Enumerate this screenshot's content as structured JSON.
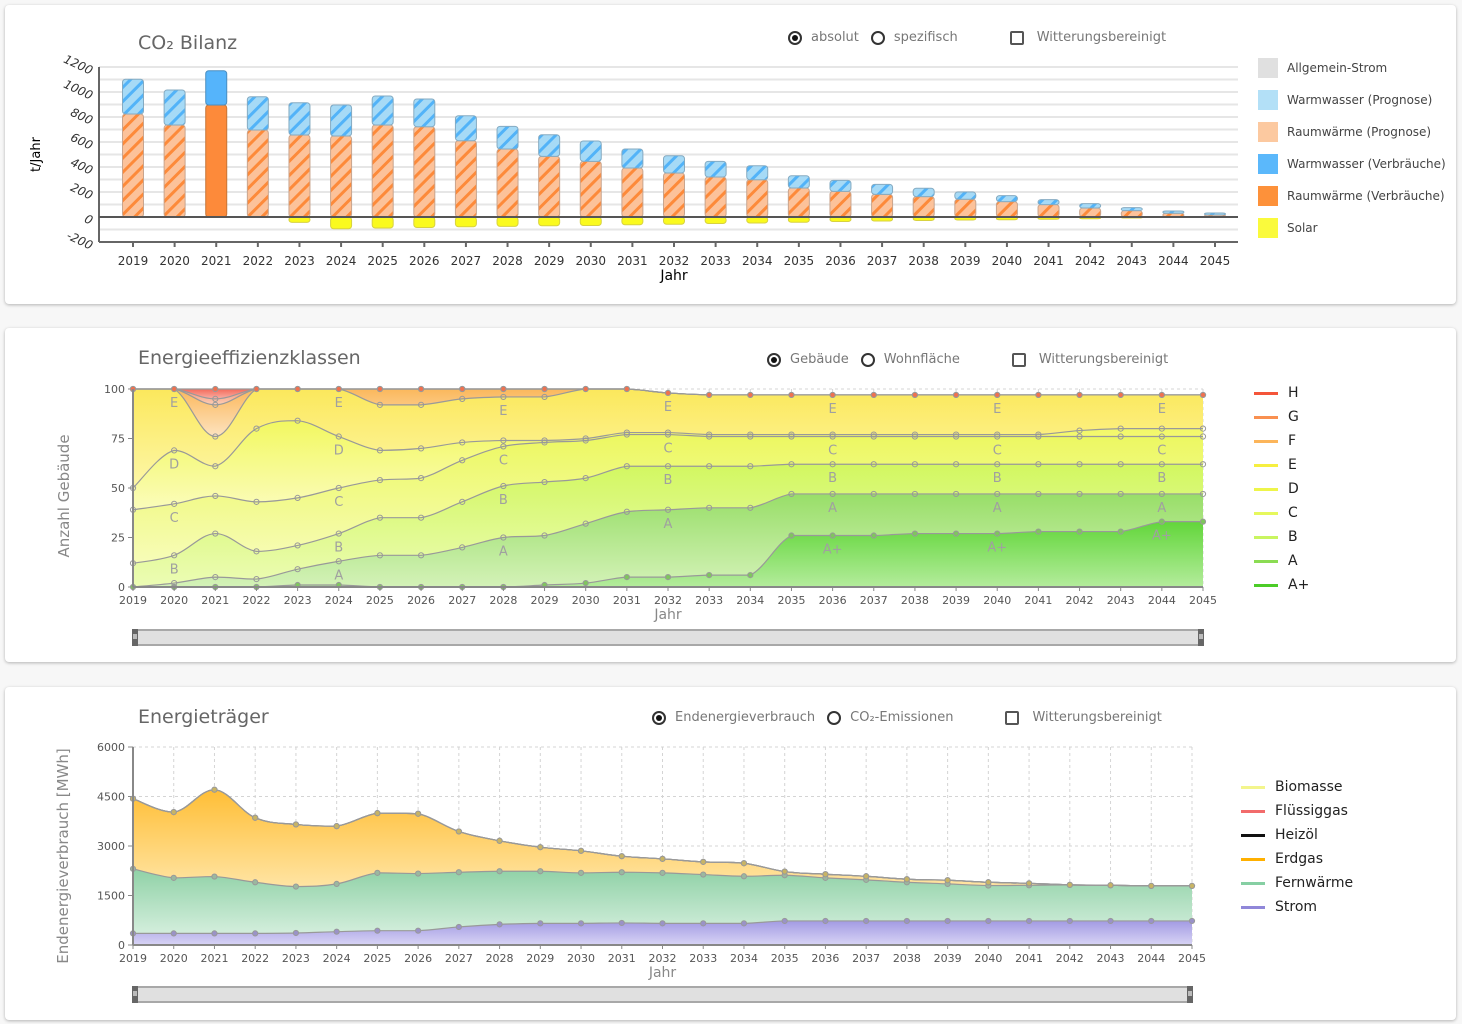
{
  "years": [
    "2019",
    "2020",
    "2021",
    "2022",
    "2023",
    "2024",
    "2025",
    "2026",
    "2027",
    "2028",
    "2029",
    "2030",
    "2031",
    "2032",
    "2033",
    "2034",
    "2035",
    "2036",
    "2037",
    "2038",
    "2039",
    "2040",
    "2041",
    "2042",
    "2043",
    "2044",
    "2045"
  ],
  "co2": {
    "title": "CO₂ Bilanz",
    "options": {
      "absolut": "absolut",
      "spezifisch": "spezifisch",
      "witterung": "Witterungsbereinigt"
    },
    "selected": "absolut",
    "witterung_checked": false,
    "legend": [
      {
        "label": "Allgemein-Strom",
        "color": "#e0e0e0"
      },
      {
        "label": "Warmwasser (Prognose)",
        "color": "#b3e0f7"
      },
      {
        "label": "Raumwärme (Prognose)",
        "color": "#fcc9a0"
      },
      {
        "label": "Warmwasser (Verbräuche)",
        "color": "#5bb8fb"
      },
      {
        "label": "Raumwärme (Verbräuche)",
        "color": "#fd913a"
      },
      {
        "label": "Solar",
        "color": "#fafa3c"
      }
    ]
  },
  "effizienz": {
    "title": "Energieeffizienzklassen",
    "options": {
      "gebaeude": "Gebäude",
      "wohnflaeche": "Wohnfläche",
      "witterung": "Witterungsbereinigt"
    },
    "selected": "gebaeude",
    "witterung_checked": false,
    "legend": [
      {
        "label": "H",
        "color": "#f4553a"
      },
      {
        "label": "G",
        "color": "#f99050"
      },
      {
        "label": "F",
        "color": "#fcb55a"
      },
      {
        "label": "E",
        "color": "#f6ef40"
      },
      {
        "label": "D",
        "color": "#eef54a"
      },
      {
        "label": "C",
        "color": "#e6f85c"
      },
      {
        "label": "B",
        "color": "#c9f560"
      },
      {
        "label": "A",
        "color": "#8bdc53"
      },
      {
        "label": "A+",
        "color": "#4ccc27"
      }
    ]
  },
  "traeger": {
    "title": "Energieträger",
    "options": {
      "endenergie": "Endenergieverbrauch",
      "co2": "CO₂-Emissionen",
      "witterung": "Witterungsbereinigt"
    },
    "selected": "endenergie",
    "witterung_checked": false,
    "legend": [
      {
        "label": "Biomasse",
        "color": "#f3f58c"
      },
      {
        "label": "Flüssiggas",
        "color": "#f26b6b"
      },
      {
        "label": "Heizöl",
        "color": "#111111"
      },
      {
        "label": "Erdgas",
        "color": "#ffb000"
      },
      {
        "label": "Fernwärme",
        "color": "#86cfa3"
      },
      {
        "label": "Strom",
        "color": "#9087d9"
      }
    ]
  },
  "chart_data": [
    {
      "type": "bar",
      "stacked": true,
      "title": "CO₂ Bilanz",
      "xlabel": "Jahr",
      "ylabel": "t/Jahr",
      "ylim": [
        -200,
        1200
      ],
      "yticks": [
        -200,
        0,
        200,
        400,
        600,
        800,
        1000,
        1200
      ],
      "grid": true,
      "legend_position": "right",
      "categories": [
        "2019",
        "2020",
        "2021",
        "2022",
        "2023",
        "2024",
        "2025",
        "2026",
        "2027",
        "2028",
        "2029",
        "2030",
        "2031",
        "2032",
        "2033",
        "2034",
        "2035",
        "2036",
        "2037",
        "2038",
        "2039",
        "2040",
        "2041",
        "2042",
        "2043",
        "2044",
        "2045"
      ],
      "series": [
        {
          "name": "Raumwärme (Prognose)",
          "values": [
            824,
            736,
            null,
            696,
            656,
            648,
            736,
            722,
            610,
            544,
            485,
            445,
            392,
            352,
            320,
            298,
            232,
            205,
            181,
            163,
            142,
            123,
            99,
            72,
            51,
            30,
            16
          ]
        },
        {
          "name": "Warmwasser (Prognose)",
          "values": [
            278,
            280,
            null,
            266,
            258,
            248,
            232,
            222,
            200,
            181,
            173,
            163,
            152,
            138,
            125,
            112,
            98,
            88,
            80,
            67,
            58,
            48,
            40,
            35,
            24,
            18,
            16
          ]
        },
        {
          "name": "Raumwärme (Verbräuche)",
          "values": [
            null,
            null,
            896,
            null,
            null,
            null,
            null,
            null,
            null,
            null,
            null,
            null,
            null,
            null,
            null,
            null,
            null,
            null,
            null,
            null,
            null,
            null,
            null,
            null,
            null,
            null,
            null
          ]
        },
        {
          "name": "Warmwasser (Verbräuche)",
          "values": [
            null,
            null,
            274,
            null,
            null,
            null,
            null,
            null,
            null,
            null,
            null,
            null,
            null,
            null,
            null,
            null,
            null,
            null,
            null,
            null,
            null,
            null,
            null,
            null,
            null,
            null,
            null
          ]
        },
        {
          "name": "Solar",
          "values": [
            0,
            0,
            0,
            0,
            -43,
            -94,
            -88,
            -84,
            -78,
            -75,
            -70,
            -68,
            -62,
            -58,
            -52,
            -48,
            -42,
            -36,
            -32,
            -28,
            -24,
            -22,
            -18,
            -14,
            -8,
            -4,
            0
          ]
        },
        {
          "name": "Allgemein-Strom",
          "values": [
            0,
            0,
            0,
            0,
            0,
            0,
            0,
            0,
            0,
            0,
            0,
            0,
            0,
            0,
            0,
            0,
            0,
            0,
            0,
            0,
            0,
            0,
            0,
            0,
            0,
            0,
            0
          ]
        }
      ]
    },
    {
      "type": "area",
      "stacked": true,
      "title": "Energieeffizienzklassen",
      "xlabel": "Jahr",
      "ylabel": "Anzahl Gebäude",
      "ylim": [
        0,
        100
      ],
      "yticks": [
        0,
        25,
        50,
        75,
        100
      ],
      "grid": true,
      "legend_position": "right",
      "x": [
        "2019",
        "2020",
        "2021",
        "2022",
        "2023",
        "2024",
        "2025",
        "2026",
        "2027",
        "2028",
        "2029",
        "2030",
        "2031",
        "2032",
        "2033",
        "2034",
        "2035",
        "2036",
        "2037",
        "2038",
        "2039",
        "2040",
        "2041",
        "2042",
        "2043",
        "2044",
        "2045"
      ],
      "series": [
        {
          "name": "A+",
          "values": [
            0,
            0,
            0,
            0,
            1,
            1,
            0,
            0,
            0,
            0,
            1,
            2,
            5,
            5,
            6,
            6,
            26,
            26,
            26,
            27,
            27,
            27,
            28,
            28,
            28,
            33,
            33
          ]
        },
        {
          "name": "A",
          "values": [
            0,
            2,
            5,
            4,
            8,
            12,
            16,
            16,
            20,
            25,
            25,
            30,
            33,
            34,
            34,
            34,
            21,
            21,
            21,
            20,
            20,
            20,
            19,
            19,
            19,
            14,
            14
          ]
        },
        {
          "name": "B",
          "values": [
            12,
            14,
            22,
            14,
            12,
            14,
            19,
            19,
            23,
            26,
            27,
            23,
            23,
            22,
            21,
            21,
            15,
            15,
            15,
            15,
            15,
            15,
            15,
            15,
            15,
            15,
            15
          ]
        },
        {
          "name": "C",
          "values": [
            27,
            26,
            19,
            25,
            24,
            23,
            19,
            20,
            21,
            20,
            20,
            19,
            16,
            16,
            15,
            15,
            14,
            14,
            14,
            14,
            14,
            14,
            14,
            14,
            14,
            14,
            14
          ]
        },
        {
          "name": "D",
          "values": [
            11,
            27,
            15,
            37,
            39,
            26,
            15,
            15,
            9,
            3,
            1,
            1,
            1,
            1,
            1,
            1,
            1,
            1,
            1,
            1,
            1,
            1,
            1,
            3,
            4,
            4,
            4
          ]
        },
        {
          "name": "E",
          "values": [
            50,
            31,
            15,
            20,
            16,
            24,
            23,
            22,
            22,
            22,
            22,
            25,
            22,
            20,
            20,
            20,
            20,
            20,
            20,
            20,
            20,
            20,
            20,
            18,
            17,
            17,
            17
          ]
        },
        {
          "name": "F",
          "values": [
            0,
            0,
            16,
            0,
            0,
            0,
            8,
            8,
            5,
            4,
            4,
            0,
            0,
            0,
            0,
            0,
            0,
            0,
            0,
            0,
            0,
            0,
            0,
            0,
            0,
            0,
            0
          ]
        },
        {
          "name": "G",
          "values": [
            0,
            0,
            3,
            0,
            0,
            0,
            0,
            0,
            0,
            0,
            0,
            0,
            0,
            0,
            0,
            0,
            0,
            0,
            0,
            0,
            0,
            0,
            0,
            0,
            0,
            0,
            0
          ]
        },
        {
          "name": "H",
          "values": [
            0,
            0,
            5,
            0,
            0,
            0,
            0,
            0,
            0,
            0,
            0,
            0,
            0,
            0,
            0,
            0,
            0,
            0,
            0,
            0,
            0,
            0,
            0,
            0,
            0,
            0,
            0
          ]
        }
      ],
      "band_labels": [
        {
          "label": "E",
          "years": [
            "2020",
            "2024",
            "2028",
            "2032",
            "2036",
            "2040",
            "2044"
          ]
        },
        {
          "label": "D",
          "years": [
            "2020",
            "2024"
          ]
        },
        {
          "label": "C",
          "years": [
            "2020",
            "2024",
            "2028",
            "2032",
            "2036",
            "2040",
            "2044"
          ]
        },
        {
          "label": "B",
          "years": [
            "2020",
            "2024",
            "2028",
            "2032",
            "2036",
            "2040",
            "2044"
          ]
        },
        {
          "label": "A",
          "years": [
            "2024",
            "2028",
            "2032",
            "2036",
            "2040",
            "2044"
          ]
        },
        {
          "label": "A+",
          "years": [
            "2036",
            "2040",
            "2044"
          ]
        }
      ]
    },
    {
      "type": "area",
      "stacked": true,
      "title": "Energieträger",
      "xlabel": "Jahr",
      "ylabel": "Endenergieverbrauch [MWh]",
      "ylim": [
        0,
        6000
      ],
      "yticks": [
        0,
        1500,
        3000,
        4500,
        6000
      ],
      "grid": true,
      "legend_position": "right",
      "x": [
        "2019",
        "2020",
        "2021",
        "2022",
        "2023",
        "2024",
        "2025",
        "2026",
        "2027",
        "2028",
        "2029",
        "2030",
        "2031",
        "2032",
        "2033",
        "2034",
        "2035",
        "2036",
        "2037",
        "2038",
        "2039",
        "2040",
        "2041",
        "2042",
        "2043",
        "2044",
        "2045"
      ],
      "series": [
        {
          "name": "Strom",
          "values": [
            352,
            352,
            352,
            352,
            364,
            404,
            434,
            434,
            547,
            626,
            656,
            656,
            668,
            656,
            656,
            656,
            729,
            729,
            729,
            729,
            729,
            729,
            729,
            729,
            729,
            729,
            729
          ]
        },
        {
          "name": "Fernwärme",
          "values": [
            1956,
            1683,
            1722,
            1549,
            1407,
            1448,
            1752,
            1731,
            1658,
            1609,
            1579,
            1530,
            1537,
            1530,
            1479,
            1427,
            1385,
            1306,
            1245,
            1172,
            1123,
            1072,
            1081,
            1093,
            1081,
            1062,
            1062
          ]
        },
        {
          "name": "Erdgas",
          "values": [
            2125,
            1992,
            2633,
            1956,
            1882,
            1750,
            1810,
            1813,
            1236,
            923,
            729,
            668,
            486,
            425,
            385,
            395,
            112,
            110,
            109,
            92,
            111,
            100,
            60,
            0,
            0,
            0,
            0
          ]
        },
        {
          "name": "Heizöl",
          "values": [
            0,
            0,
            0,
            0,
            0,
            0,
            0,
            0,
            0,
            0,
            0,
            0,
            0,
            0,
            0,
            0,
            0,
            0,
            0,
            0,
            0,
            0,
            0,
            0,
            0,
            0,
            0
          ]
        },
        {
          "name": "Flüssiggas",
          "values": [
            0,
            0,
            0,
            0,
            0,
            0,
            0,
            0,
            0,
            0,
            0,
            0,
            0,
            0,
            0,
            0,
            0,
            0,
            0,
            0,
            0,
            0,
            0,
            0,
            0,
            0,
            0
          ]
        },
        {
          "name": "Biomasse",
          "values": [
            0,
            0,
            0,
            0,
            0,
            0,
            0,
            0,
            0,
            0,
            0,
            0,
            0,
            0,
            0,
            0,
            0,
            0,
            0,
            0,
            0,
            0,
            0,
            0,
            0,
            0,
            0
          ]
        }
      ]
    }
  ],
  "axis": {
    "xlabel": "Jahr"
  }
}
